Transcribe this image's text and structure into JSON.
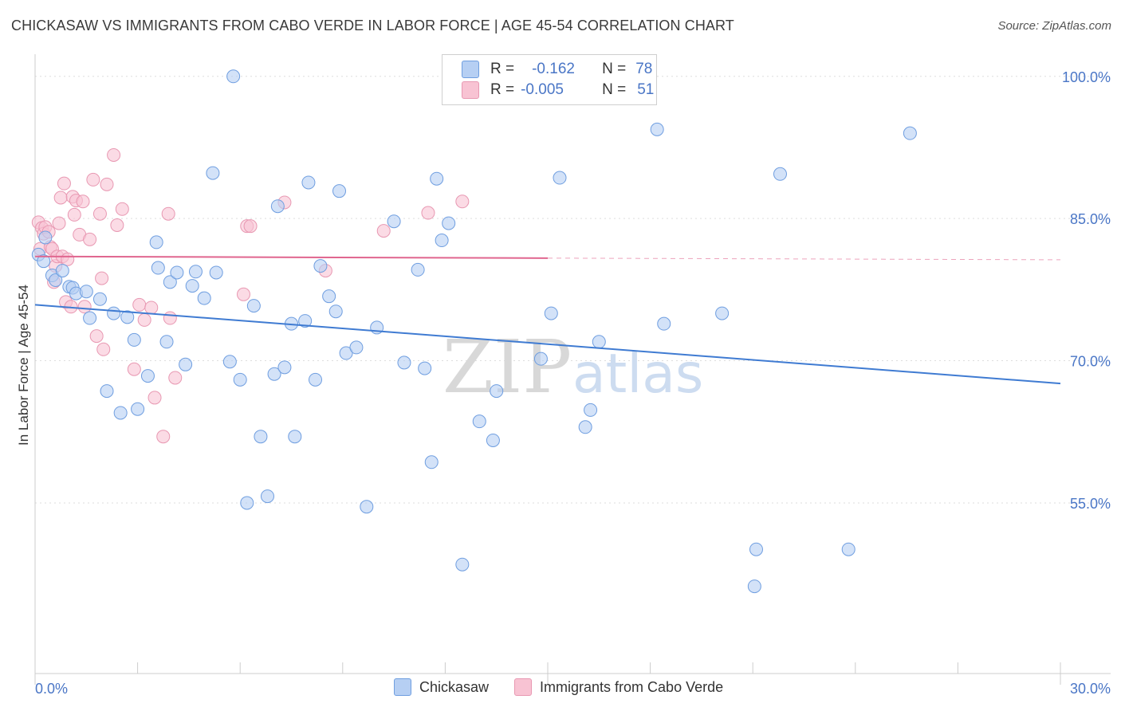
{
  "title": "CHICKASAW VS IMMIGRANTS FROM CABO VERDE IN LABOR FORCE | AGE 45-54 CORRELATION CHART",
  "source": "Source: ZipAtlas.com",
  "watermark": {
    "zip": "ZIP",
    "atlas": "atlas"
  },
  "legend": {
    "rows": [
      {
        "r_key": "R =",
        "r_val": "-0.162",
        "n_key": "N =",
        "n_val": "78"
      },
      {
        "r_key": "R =",
        "r_val": "-0.005",
        "n_key": "N =",
        "n_val": "51"
      }
    ]
  },
  "chart_data": {
    "type": "scatter",
    "title": "CHICKASAW VS IMMIGRANTS FROM CABO VERDE IN LABOR FORCE | AGE 45-54 CORRELATION CHART",
    "xlabel": "",
    "ylabel": "In Labor Force | Age 45-54",
    "xlim": [
      0,
      30
    ],
    "ylim": [
      37,
      102
    ],
    "x_tick_labels": [
      "0.0%",
      "30.0%"
    ],
    "y_ticks": [
      55,
      70,
      85,
      100
    ],
    "y_tick_labels": [
      "55.0%",
      "70.0%",
      "85.0%",
      "100.0%"
    ],
    "colors": {
      "chickasaw_fill": "#b6cff3",
      "chickasaw_stroke": "#6f9ee0",
      "chickasaw_line": "#3f7bd2",
      "cabo_fill": "#f8c3d3",
      "cabo_stroke": "#e898b2",
      "cabo_line": "#e0668f",
      "grid": "#dddddd",
      "axis_text": "#4a76c6"
    },
    "series": [
      {
        "name": "Chickasaw",
        "r": -0.162,
        "n": 78,
        "trend": {
          "x": [
            0,
            30
          ],
          "y": [
            75.9,
            67.6
          ],
          "dashed_from": null
        },
        "points": [
          [
            0.1,
            81.2
          ],
          [
            0.25,
            80.5
          ],
          [
            0.3,
            83.0
          ],
          [
            0.5,
            79.0
          ],
          [
            0.6,
            78.5
          ],
          [
            0.8,
            79.5
          ],
          [
            1.0,
            77.8
          ],
          [
            1.1,
            77.7
          ],
          [
            1.2,
            77.1
          ],
          [
            1.5,
            77.3
          ],
          [
            1.6,
            74.5
          ],
          [
            1.9,
            76.5
          ],
          [
            2.1,
            66.8
          ],
          [
            2.3,
            75.0
          ],
          [
            2.5,
            64.5
          ],
          [
            2.7,
            74.6
          ],
          [
            2.9,
            72.2
          ],
          [
            3.0,
            64.9
          ],
          [
            3.3,
            68.4
          ],
          [
            3.55,
            82.5
          ],
          [
            3.6,
            79.8
          ],
          [
            3.85,
            72.0
          ],
          [
            3.95,
            78.3
          ],
          [
            4.15,
            79.3
          ],
          [
            4.4,
            69.6
          ],
          [
            4.6,
            77.9
          ],
          [
            4.7,
            79.4
          ],
          [
            4.95,
            76.6
          ],
          [
            5.2,
            89.8
          ],
          [
            5.3,
            79.3
          ],
          [
            5.7,
            69.9
          ],
          [
            5.8,
            100.0
          ],
          [
            6.0,
            68.0
          ],
          [
            6.2,
            55.0
          ],
          [
            6.4,
            75.8
          ],
          [
            6.6,
            62.0
          ],
          [
            6.8,
            55.7
          ],
          [
            7.0,
            68.6
          ],
          [
            7.1,
            86.3
          ],
          [
            7.3,
            69.3
          ],
          [
            7.5,
            73.9
          ],
          [
            7.6,
            62.0
          ],
          [
            7.9,
            74.2
          ],
          [
            8.0,
            88.8
          ],
          [
            8.2,
            68.0
          ],
          [
            8.35,
            80.0
          ],
          [
            8.6,
            76.8
          ],
          [
            8.8,
            75.2
          ],
          [
            8.9,
            87.9
          ],
          [
            9.1,
            70.8
          ],
          [
            9.4,
            71.4
          ],
          [
            9.7,
            54.6
          ],
          [
            10.0,
            73.5
          ],
          [
            10.5,
            84.7
          ],
          [
            10.8,
            69.8
          ],
          [
            11.2,
            79.6
          ],
          [
            11.4,
            69.2
          ],
          [
            11.6,
            59.3
          ],
          [
            11.75,
            89.2
          ],
          [
            11.9,
            82.7
          ],
          [
            12.1,
            84.5
          ],
          [
            12.5,
            48.5
          ],
          [
            13.0,
            63.6
          ],
          [
            13.4,
            61.6
          ],
          [
            13.5,
            66.8
          ],
          [
            14.8,
            70.2
          ],
          [
            15.1,
            75.0
          ],
          [
            15.35,
            89.3
          ],
          [
            16.1,
            63.0
          ],
          [
            16.25,
            64.8
          ],
          [
            16.5,
            72.0
          ],
          [
            18.2,
            94.4
          ],
          [
            18.4,
            73.9
          ],
          [
            20.1,
            75.0
          ],
          [
            21.1,
            50.1
          ],
          [
            21.05,
            46.2
          ],
          [
            21.8,
            89.7
          ],
          [
            23.8,
            50.1
          ],
          [
            25.6,
            94.0
          ]
        ]
      },
      {
        "name": "Immigrants from Cabo Verde",
        "r": -0.005,
        "n": 51,
        "trend": {
          "x": [
            0,
            30
          ],
          "y": [
            81.0,
            80.65
          ],
          "dashed_from": 15
        },
        "points": [
          [
            0.1,
            84.6
          ],
          [
            0.15,
            81.8
          ],
          [
            0.2,
            84.0
          ],
          [
            0.25,
            83.4
          ],
          [
            0.3,
            84.1
          ],
          [
            0.4,
            83.6
          ],
          [
            0.45,
            82.0
          ],
          [
            0.5,
            81.8
          ],
          [
            0.55,
            78.3
          ],
          [
            0.6,
            80.0
          ],
          [
            0.65,
            81.0
          ],
          [
            0.7,
            84.5
          ],
          [
            0.75,
            87.2
          ],
          [
            0.8,
            81.0
          ],
          [
            0.85,
            88.7
          ],
          [
            0.9,
            76.2
          ],
          [
            0.95,
            80.7
          ],
          [
            1.05,
            75.7
          ],
          [
            1.1,
            87.3
          ],
          [
            1.15,
            85.4
          ],
          [
            1.2,
            86.9
          ],
          [
            1.3,
            83.3
          ],
          [
            1.4,
            86.8
          ],
          [
            1.45,
            75.7
          ],
          [
            1.6,
            82.8
          ],
          [
            1.7,
            89.1
          ],
          [
            1.8,
            72.6
          ],
          [
            1.9,
            85.5
          ],
          [
            1.95,
            78.7
          ],
          [
            2.0,
            71.2
          ],
          [
            2.1,
            88.6
          ],
          [
            2.3,
            91.7
          ],
          [
            2.4,
            84.3
          ],
          [
            2.55,
            86.0
          ],
          [
            2.9,
            69.1
          ],
          [
            3.05,
            75.9
          ],
          [
            3.2,
            74.3
          ],
          [
            3.4,
            75.6
          ],
          [
            3.5,
            66.1
          ],
          [
            3.75,
            62.0
          ],
          [
            3.9,
            85.5
          ],
          [
            3.95,
            74.5
          ],
          [
            4.1,
            68.2
          ],
          [
            6.1,
            77.0
          ],
          [
            6.2,
            84.2
          ],
          [
            6.3,
            84.2
          ],
          [
            7.3,
            86.7
          ],
          [
            8.5,
            79.5
          ],
          [
            10.2,
            83.7
          ],
          [
            11.5,
            85.6
          ],
          [
            12.5,
            86.8
          ]
        ]
      }
    ]
  }
}
